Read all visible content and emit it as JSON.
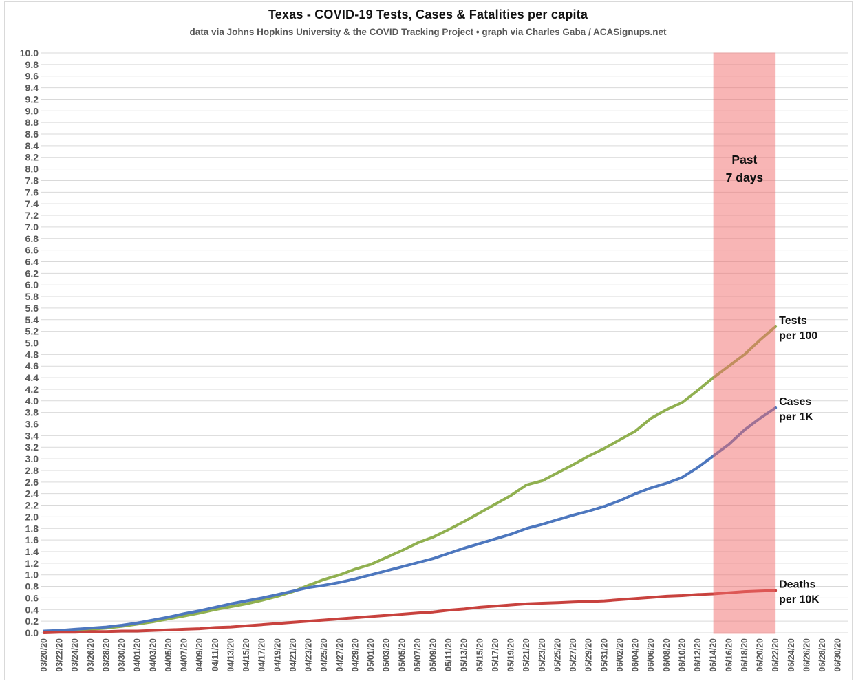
{
  "title": "Texas - COVID-19 Tests, Cases & Fatalities per capita",
  "subtitle": "data via Johns Hopkins University & the COVID Tracking Project • graph via Charles Gaba / ACASignups.net",
  "chart_data": {
    "type": "line",
    "title": "Texas - COVID-19 Tests, Cases & Fatalities per capita",
    "xlabel": "",
    "ylabel": "",
    "ylim": [
      0.0,
      10.0
    ],
    "y_tick_step": 0.2,
    "grid": "horizontal-only",
    "legend_position": "right-edge-inline-labels",
    "x_tick_labels": [
      "03/20/20",
      "03/22/20",
      "03/24/20",
      "03/26/20",
      "03/28/20",
      "03/30/20",
      "04/01/20",
      "04/03/20",
      "04/05/20",
      "04/07/20",
      "04/09/20",
      "04/11/20",
      "04/13/20",
      "04/15/20",
      "04/17/20",
      "04/19/20",
      "04/21/20",
      "04/23/20",
      "04/25/20",
      "04/27/20",
      "04/29/20",
      "05/01/20",
      "05/03/20",
      "05/05/20",
      "05/07/20",
      "05/09/20",
      "05/11/20",
      "05/13/20",
      "05/15/20",
      "05/17/20",
      "05/19/20",
      "05/21/20",
      "05/23/20",
      "05/25/20",
      "05/27/20",
      "05/29/20",
      "05/31/20",
      "06/02/20",
      "06/04/20",
      "06/06/20",
      "06/08/20",
      "06/10/20",
      "06/12/20",
      "06/14/20",
      "06/16/20",
      "06/18/20",
      "06/20/20",
      "06/22/20",
      "06/24/20",
      "06/26/20",
      "06/28/20",
      "06/30/20"
    ],
    "dates": [
      "03/20/20",
      "03/22/20",
      "03/24/20",
      "03/26/20",
      "03/28/20",
      "03/30/20",
      "04/01/20",
      "04/03/20",
      "04/05/20",
      "04/07/20",
      "04/09/20",
      "04/11/20",
      "04/13/20",
      "04/15/20",
      "04/17/20",
      "04/19/20",
      "04/21/20",
      "04/23/20",
      "04/25/20",
      "04/27/20",
      "04/29/20",
      "05/01/20",
      "05/03/20",
      "05/05/20",
      "05/07/20",
      "05/09/20",
      "05/11/20",
      "05/13/20",
      "05/15/20",
      "05/17/20",
      "05/19/20",
      "05/21/20",
      "05/23/20",
      "05/25/20",
      "05/27/20",
      "05/29/20",
      "05/31/20",
      "06/02/20",
      "06/04/20",
      "06/06/20",
      "06/08/20",
      "06/10/20",
      "06/12/20",
      "06/14/20",
      "06/16/20",
      "06/18/20",
      "06/20/20",
      "06/22/20"
    ],
    "series": [
      {
        "name": "Tests per 100",
        "label_lines": [
          "Tests",
          "per 100"
        ],
        "color": "#90b050",
        "values": [
          0.02,
          0.03,
          0.05,
          0.06,
          0.08,
          0.11,
          0.15,
          0.19,
          0.24,
          0.29,
          0.34,
          0.4,
          0.45,
          0.5,
          0.56,
          0.63,
          0.71,
          0.82,
          0.92,
          1.0,
          1.1,
          1.18,
          1.3,
          1.42,
          1.55,
          1.65,
          1.78,
          1.92,
          2.07,
          2.22,
          2.37,
          2.55,
          2.62,
          2.76,
          2.9,
          3.05,
          3.18,
          3.33,
          3.48,
          3.7,
          3.85,
          3.97,
          4.18,
          4.4,
          4.6,
          4.8,
          5.05,
          5.28
        ]
      },
      {
        "name": "Cases per 1K",
        "label_lines": [
          "Cases",
          "per 1K"
        ],
        "color": "#4d77be",
        "values": [
          0.03,
          0.04,
          0.06,
          0.08,
          0.1,
          0.13,
          0.17,
          0.22,
          0.27,
          0.33,
          0.38,
          0.44,
          0.5,
          0.55,
          0.6,
          0.66,
          0.72,
          0.78,
          0.82,
          0.87,
          0.93,
          1.0,
          1.07,
          1.14,
          1.21,
          1.28,
          1.37,
          1.46,
          1.54,
          1.62,
          1.7,
          1.8,
          1.87,
          1.95,
          2.03,
          2.1,
          2.18,
          2.28,
          2.4,
          2.5,
          2.58,
          2.68,
          2.85,
          3.05,
          3.25,
          3.5,
          3.7,
          3.88
        ]
      },
      {
        "name": "Deaths per 10K",
        "label_lines": [
          "Deaths",
          "per 10K"
        ],
        "color": "#c8423e",
        "values": [
          0.0,
          0.01,
          0.01,
          0.02,
          0.02,
          0.03,
          0.03,
          0.04,
          0.05,
          0.06,
          0.07,
          0.09,
          0.1,
          0.12,
          0.14,
          0.16,
          0.18,
          0.2,
          0.22,
          0.24,
          0.26,
          0.28,
          0.3,
          0.32,
          0.34,
          0.36,
          0.39,
          0.41,
          0.44,
          0.46,
          0.48,
          0.5,
          0.51,
          0.52,
          0.53,
          0.54,
          0.55,
          0.57,
          0.59,
          0.61,
          0.63,
          0.64,
          0.66,
          0.67,
          0.69,
          0.71,
          0.72,
          0.73
        ]
      }
    ],
    "highlight_band": {
      "label": "Past 7 days",
      "label_lines": [
        "Past",
        "7 days"
      ],
      "start": "06/14/20",
      "end": "06/22/20",
      "fill": "rgba(242,108,108,0.5)"
    },
    "colors": {
      "grid": "#d9d9d9",
      "tick_text": "#595959",
      "annotation_text": "#111111",
      "border": "#d9d9d9"
    }
  }
}
